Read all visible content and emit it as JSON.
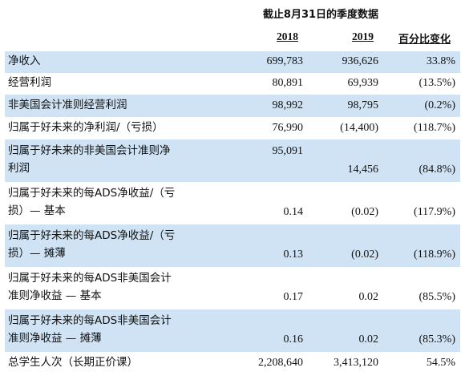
{
  "header": {
    "period": "截止8月31日的季度数据",
    "col_2018": "2018",
    "col_2019": "2019",
    "col_pct": "百分比变化"
  },
  "rows": [
    {
      "label_lines": [
        "净收入"
      ],
      "v2018": "699,783",
      "v2019": "936,626",
      "pct": "33.8%",
      "shaded": true
    },
    {
      "label_lines": [
        "经营利润"
      ],
      "v2018": "80,891",
      "v2019": "69,939",
      "pct": "(13.5%)",
      "shaded": false
    },
    {
      "label_lines": [
        "非美国会计准则经营利润"
      ],
      "v2018": "98,992",
      "v2019": "98,795",
      "pct": "(0.2%)",
      "shaded": true
    },
    {
      "label_lines": [
        "归属于好未来的净利润/（亏损）"
      ],
      "v2018": "76,990",
      "v2019": "(14,400)",
      "pct": "(118.7%)",
      "shaded": false
    },
    {
      "label_lines": [
        "归属于好未来的非美国会计准则净",
        "利润"
      ],
      "v2018": "95,091",
      "v2019": "14,456",
      "pct": "(84.8%)",
      "shaded": true
    },
    {
      "label_lines": [
        "归属于好未来的每ADS净收益/（亏",
        "损）— 基本"
      ],
      "v2018": "0.14",
      "v2019": "(0.02)",
      "pct": "(117.9%)",
      "shaded": false
    },
    {
      "label_lines": [
        "归属于好未来的每ADS净收益/（亏",
        "损）— 摊薄"
      ],
      "v2018": "0.13",
      "v2019": "(0.02)",
      "pct": "(118.9%)",
      "shaded": true
    },
    {
      "label_lines": [
        "归属于好未来的每ADS非美国会计",
        "准则净收益 — 基本"
      ],
      "v2018": "0.17",
      "v2019": "0.02",
      "pct": "(85.5%)",
      "shaded": false
    },
    {
      "label_lines": [
        "归属于好未来的每ADS非美国会计",
        "准则净收益 — 摊薄"
      ],
      "v2018": "0.16",
      "v2019": "0.02",
      "pct": "(85.3%)",
      "shaded": true
    },
    {
      "label_lines": [
        "总学生人次（长期正价课）"
      ],
      "v2018": "2,208,640",
      "v2019": "3,413,120",
      "pct": "54.5%",
      "shaded": false
    }
  ]
}
